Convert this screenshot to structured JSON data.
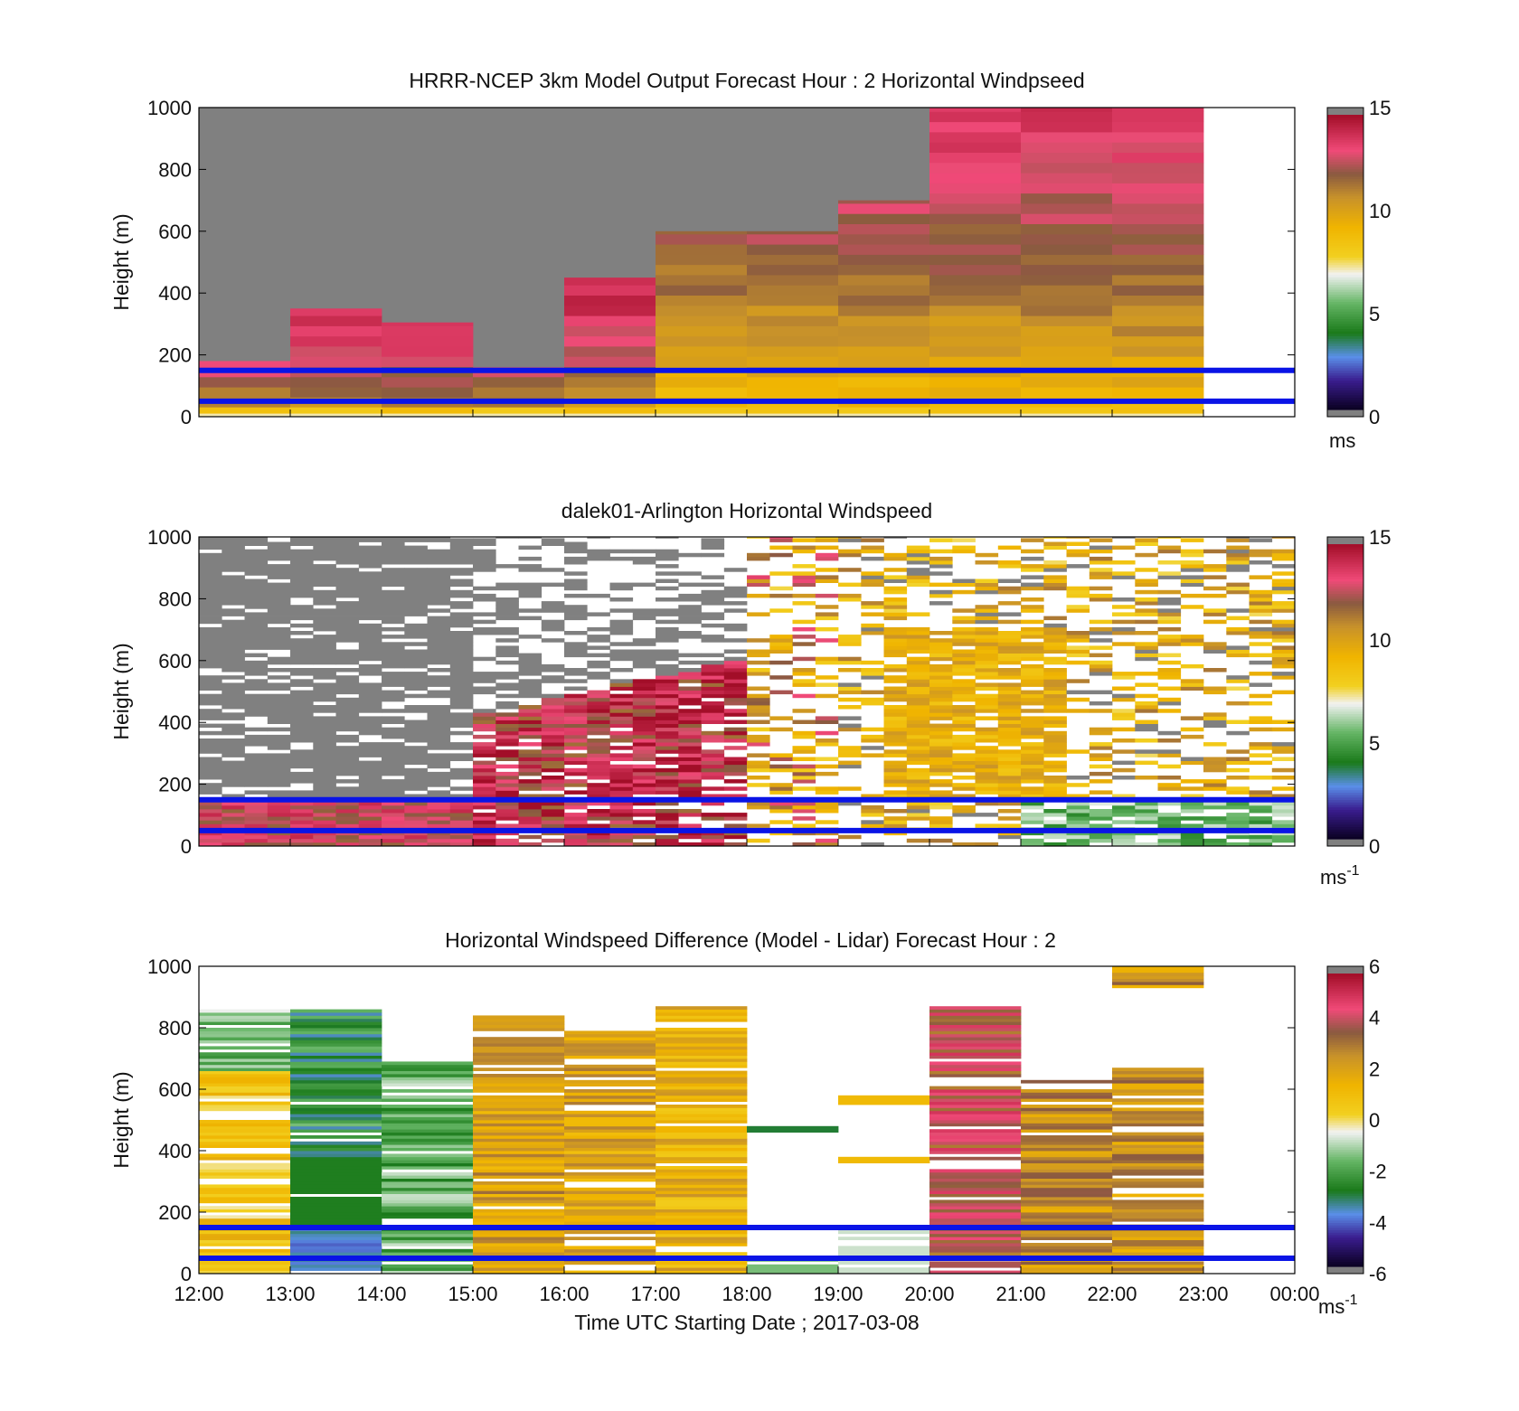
{
  "figure": {
    "xlabel": "Time UTC  Starting Date ; 2017-03-08",
    "x_ticks": [
      "12:00",
      "13:00",
      "14:00",
      "15:00",
      "16:00",
      "17:00",
      "18:00",
      "19:00",
      "20:00",
      "21:00",
      "22:00",
      "23:00",
      "00:00"
    ]
  },
  "chart_data": [
    {
      "type": "heatmap",
      "title": "HRRR-NCEP 3km Model Output   Forecast Hour : 2 Horizontal Windpseed",
      "ylabel": "Height (m)",
      "ylim": [
        0,
        1000
      ],
      "y_ticks": [
        "0",
        "200",
        "400",
        "600",
        "800",
        "1000"
      ],
      "xlim_hours_utc": [
        12,
        24
      ],
      "colorbar": {
        "min": 0,
        "max": 15,
        "ticks": [
          "0",
          "5",
          "10",
          "15"
        ],
        "unit": "ms",
        "unit_sup": ""
      },
      "reference_lines_m": [
        50,
        150
      ],
      "hourly_profile_tops_m": [
        {
          "hour": 12,
          "top": 180
        },
        {
          "hour": 13,
          "top": 350
        },
        {
          "hour": 14,
          "top": 305
        },
        {
          "hour": 15,
          "top": 160
        },
        {
          "hour": 16,
          "top": 450
        },
        {
          "hour": 17,
          "top": 600
        },
        {
          "hour": 18,
          "top": 600
        },
        {
          "hour": 19,
          "top": 700
        },
        {
          "hour": 20,
          "top": 1000
        },
        {
          "hour": 21,
          "top": 1000
        },
        {
          "hour": 22,
          "top": 1000
        }
      ],
      "grey_no_data_above_profile_until_hour": 20,
      "sample_values_ms": {
        "near_surface": 8.5,
        "mid_level": 10.5,
        "upper_level": 14.0
      }
    },
    {
      "type": "heatmap",
      "title": "dalek01-Arlington  Horizontal Windspeed",
      "ylabel": "Height (m)",
      "ylim": [
        0,
        1000
      ],
      "y_ticks": [
        "0",
        "200",
        "400",
        "600",
        "800",
        "1000"
      ],
      "xlim_hours_utc": [
        12,
        24
      ],
      "colorbar": {
        "min": 0,
        "max": 15,
        "ticks": [
          "0",
          "5",
          "10",
          "15"
        ],
        "unit": "ms",
        "unit_sup": "-1"
      },
      "reference_lines_m": [
        50,
        150
      ],
      "grey_region_note": "",
      "sample_values_ms": {
        "12-15h_low_level": 13.0,
        "15-18h_mid_level": 13.5,
        "19-23h_mid_level": 9.5,
        "21-24h_surface": 5.5
      }
    },
    {
      "type": "heatmap",
      "title": "Horizontal Windspeed Difference (Model - Lidar) Forecast Hour : 2",
      "ylabel": "Height (m)",
      "ylim": [
        0,
        1000
      ],
      "y_ticks": [
        "0",
        "200",
        "400",
        "600",
        "800",
        "1000"
      ],
      "xlim_hours_utc": [
        12,
        24
      ],
      "colorbar": {
        "min": -6,
        "max": 6,
        "ticks": [
          "-6",
          "-4",
          "-2",
          "0",
          "2",
          "4",
          "6"
        ],
        "unit": "ms",
        "unit_sup": "-1"
      },
      "reference_lines_m": [
        50,
        150
      ],
      "sample_values_ms": {
        "12h": 0.8,
        "13h": -2.6,
        "14h": -1.8,
        "15h": 2.2,
        "16h": 2.0,
        "17h": 1.5,
        "20h": 4.0,
        "21h": 2.6,
        "22h": 2.5
      }
    }
  ]
}
